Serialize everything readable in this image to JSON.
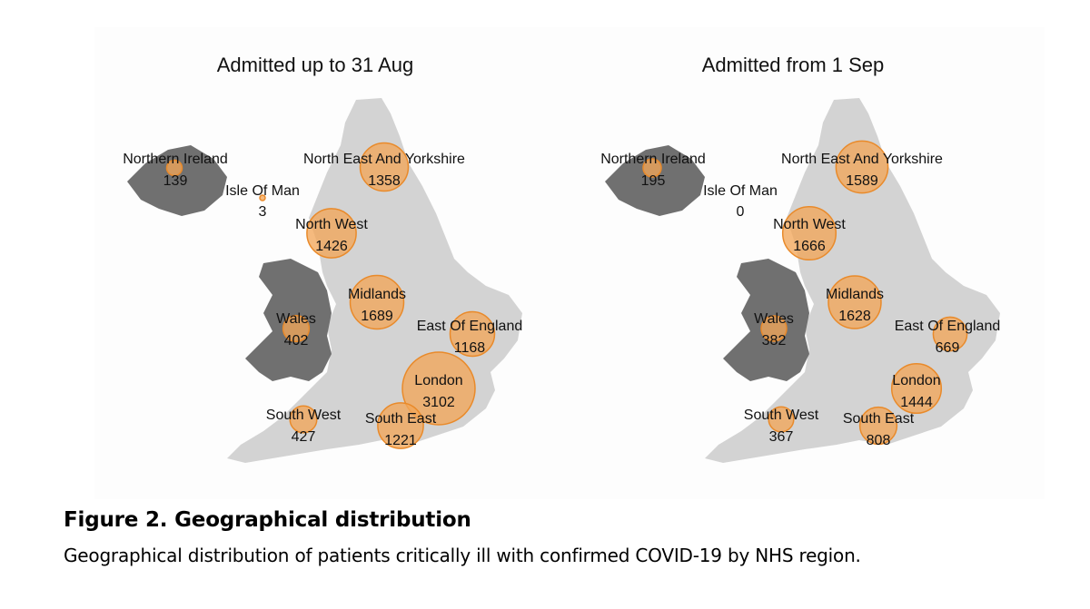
{
  "figure": {
    "title": "Figure 2. Geographical distribution",
    "description": "Geographical distribution of patients critically ill with confirmed COVID-19 by NHS region."
  },
  "colors": {
    "england": "#d3d3d3",
    "wales_ni": "#707070",
    "bubble_fill": "#f2a65a",
    "bubble_stroke": "#e98a2a"
  },
  "panels": [
    {
      "title": "Admitted up to 31 Aug",
      "regions": [
        {
          "name": "Northern Ireland",
          "value": 139
        },
        {
          "name": "Isle Of Man",
          "value": 3
        },
        {
          "name": "North East And Yorkshire",
          "value": 1358
        },
        {
          "name": "North West",
          "value": 1426
        },
        {
          "name": "Midlands",
          "value": 1689
        },
        {
          "name": "Wales",
          "value": 402
        },
        {
          "name": "East Of England",
          "value": 1168
        },
        {
          "name": "London",
          "value": 3102
        },
        {
          "name": "South West",
          "value": 427
        },
        {
          "name": "South East",
          "value": 1221
        }
      ]
    },
    {
      "title": "Admitted from 1 Sep",
      "regions": [
        {
          "name": "Northern Ireland",
          "value": 195
        },
        {
          "name": "Isle Of Man",
          "value": 0
        },
        {
          "name": "North East And Yorkshire",
          "value": 1589
        },
        {
          "name": "North West",
          "value": 1666
        },
        {
          "name": "Midlands",
          "value": 1628
        },
        {
          "name": "Wales",
          "value": 382
        },
        {
          "name": "East Of England",
          "value": 669
        },
        {
          "name": "London",
          "value": 1444
        },
        {
          "name": "South West",
          "value": 367
        },
        {
          "name": "South East",
          "value": 808
        }
      ]
    }
  ]
}
